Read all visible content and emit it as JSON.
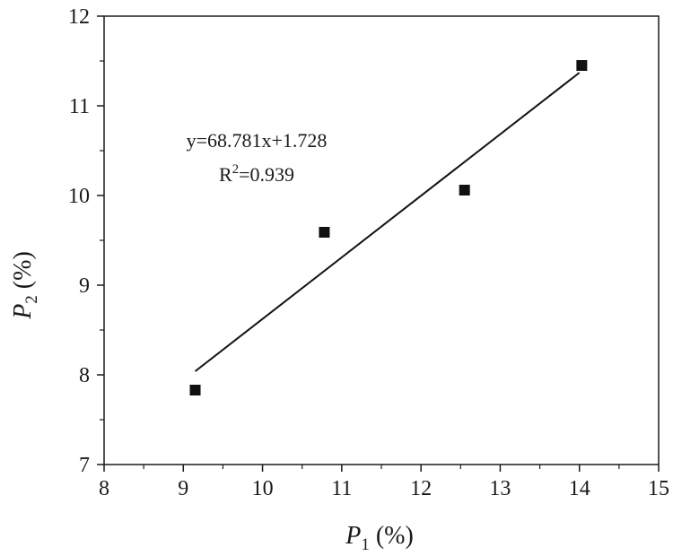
{
  "chart_data": {
    "type": "scatter",
    "xlabel": {
      "var": "P",
      "sub": "1",
      "unit": " (%)"
    },
    "ylabel": {
      "var": "P",
      "sub": "2",
      "unit": " (%)"
    },
    "xlim": [
      8,
      15
    ],
    "ylim": [
      7,
      12
    ],
    "xticks": [
      "8",
      "9",
      "10",
      "11",
      "12",
      "13",
      "14",
      "15"
    ],
    "yticks": [
      "7",
      "8",
      "9",
      "10",
      "11",
      "12"
    ],
    "points": [
      {
        "x": 9.15,
        "y": 7.83
      },
      {
        "x": 10.78,
        "y": 9.59
      },
      {
        "x": 12.55,
        "y": 10.06
      },
      {
        "x": 14.03,
        "y": 11.45
      }
    ],
    "fit_line": {
      "x": [
        9.15,
        14.0
      ],
      "y": [
        8.04,
        11.37
      ]
    },
    "annotations": {
      "equation": "y=68.781x+1.728",
      "r2_prefix": "R",
      "r2_sup": "2",
      "r2_value": "=0.939"
    },
    "grid": false,
    "marker": "filled-square",
    "colors": {
      "marks": "#111111",
      "axes": "#1a1a1a"
    }
  }
}
